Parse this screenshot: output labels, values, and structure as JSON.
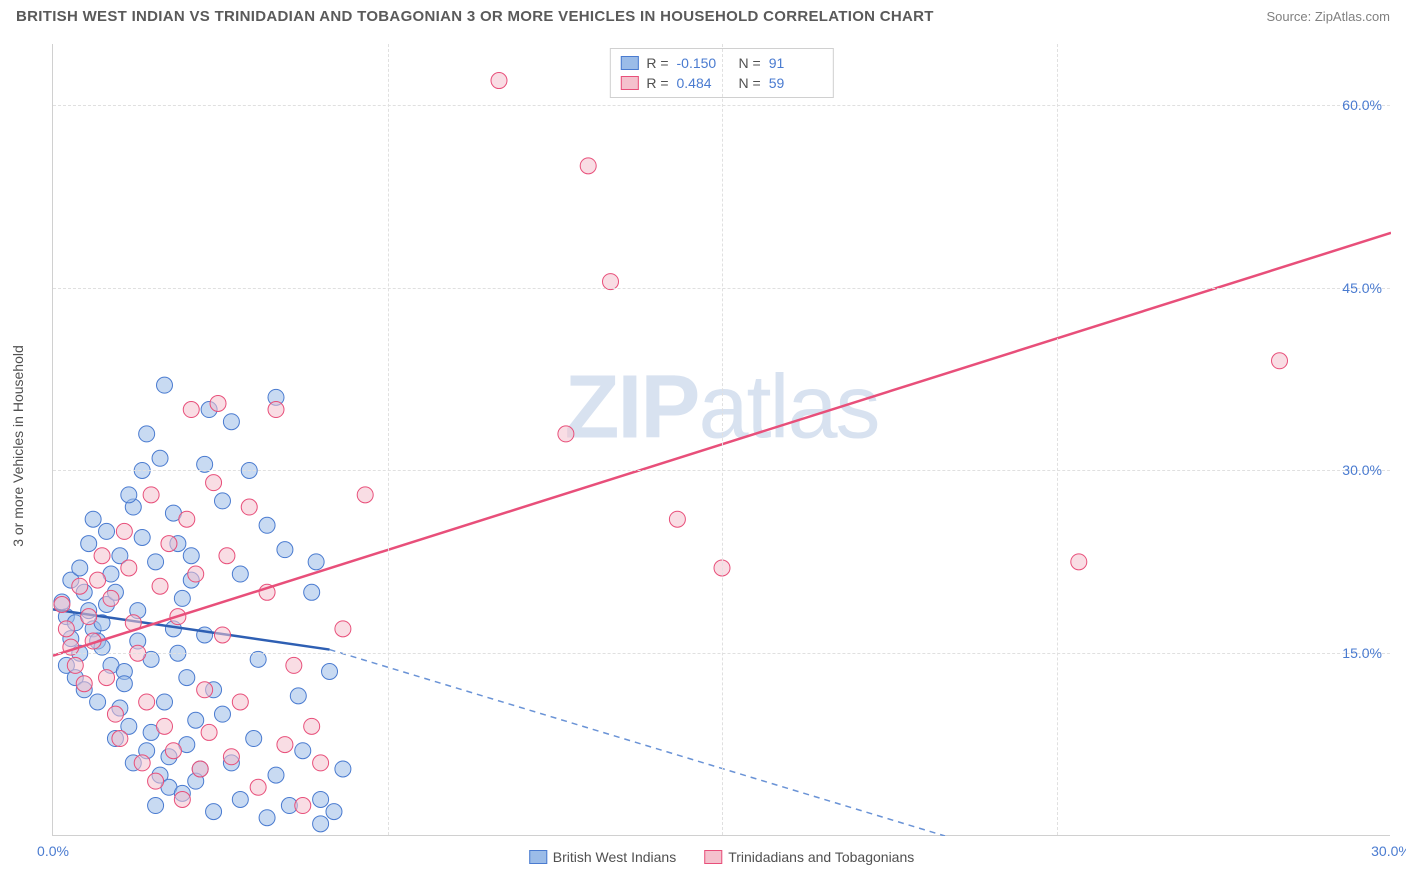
{
  "header": {
    "title": "BRITISH WEST INDIAN VS TRINIDADIAN AND TOBAGONIAN 3 OR MORE VEHICLES IN HOUSEHOLD CORRELATION CHART",
    "source": "Source: ZipAtlas.com"
  },
  "chart": {
    "type": "scatter",
    "watermark": "ZIPatlas",
    "y_axis_title": "3 or more Vehicles in Household",
    "xlim": [
      0,
      30
    ],
    "ylim": [
      0,
      65
    ],
    "x_ticks": [
      0,
      30
    ],
    "x_tick_labels": [
      "0.0%",
      "30.0%"
    ],
    "y_ticks": [
      15,
      30,
      45,
      60
    ],
    "y_tick_labels": [
      "15.0%",
      "30.0%",
      "45.0%",
      "60.0%"
    ],
    "grid_h": [
      15,
      30,
      45,
      60
    ],
    "grid_v": [
      7.5,
      15,
      22.5
    ],
    "grid_color": "#e0e0e0",
    "background_color": "#ffffff",
    "tick_label_color": "#4a7bd0",
    "axis_title_color": "#505050",
    "marker_radius": 8,
    "marker_opacity": 0.55,
    "series": [
      {
        "name": "British West Indians",
        "color_fill": "#9bbce8",
        "color_stroke": "#4a7bd0",
        "R": "-0.150",
        "N": "91",
        "trend": {
          "x1": 0,
          "y1": 18.6,
          "x2_solid": 6.2,
          "y2_solid": 15.3,
          "x2_dash": 20.0,
          "y2_dash": 0.0,
          "solid_color": "#2e5fb3",
          "dash_color": "#6a93d6"
        },
        "points": [
          [
            0.3,
            18.0
          ],
          [
            0.4,
            16.2
          ],
          [
            0.5,
            17.5
          ],
          [
            0.6,
            15.0
          ],
          [
            0.2,
            19.2
          ],
          [
            0.7,
            20.0
          ],
          [
            0.3,
            14.0
          ],
          [
            0.8,
            18.5
          ],
          [
            0.4,
            21.0
          ],
          [
            0.9,
            17.0
          ],
          [
            0.5,
            13.0
          ],
          [
            1.0,
            16.0
          ],
          [
            0.6,
            22.0
          ],
          [
            1.1,
            15.5
          ],
          [
            0.7,
            12.0
          ],
          [
            1.2,
            19.0
          ],
          [
            0.8,
            24.0
          ],
          [
            1.3,
            14.0
          ],
          [
            0.9,
            26.0
          ],
          [
            1.4,
            20.0
          ],
          [
            1.0,
            11.0
          ],
          [
            1.5,
            23.0
          ],
          [
            1.1,
            17.5
          ],
          [
            1.6,
            13.5
          ],
          [
            1.2,
            25.0
          ],
          [
            1.7,
            9.0
          ],
          [
            1.3,
            21.5
          ],
          [
            1.8,
            27.0
          ],
          [
            1.4,
            8.0
          ],
          [
            1.9,
            16.0
          ],
          [
            1.5,
            10.5
          ],
          [
            2.0,
            24.5
          ],
          [
            1.6,
            12.5
          ],
          [
            2.1,
            7.0
          ],
          [
            1.7,
            28.0
          ],
          [
            2.2,
            14.5
          ],
          [
            1.8,
            6.0
          ],
          [
            2.3,
            22.5
          ],
          [
            1.9,
            18.5
          ],
          [
            2.4,
            5.0
          ],
          [
            2.0,
            30.0
          ],
          [
            2.5,
            11.0
          ],
          [
            2.1,
            33.0
          ],
          [
            2.6,
            4.0
          ],
          [
            2.2,
            8.5
          ],
          [
            2.7,
            26.5
          ],
          [
            2.3,
            2.5
          ],
          [
            2.8,
            15.0
          ],
          [
            2.4,
            31.0
          ],
          [
            2.9,
            3.5
          ],
          [
            2.5,
            37.0
          ],
          [
            3.0,
            13.0
          ],
          [
            2.6,
            6.5
          ],
          [
            3.1,
            21.0
          ],
          [
            2.7,
            17.0
          ],
          [
            3.2,
            9.5
          ],
          [
            2.8,
            24.0
          ],
          [
            3.3,
            5.5
          ],
          [
            2.9,
            19.5
          ],
          [
            3.4,
            30.5
          ],
          [
            3.0,
            7.5
          ],
          [
            3.5,
            35.0
          ],
          [
            3.1,
            23.0
          ],
          [
            3.6,
            12.0
          ],
          [
            3.2,
            4.5
          ],
          [
            3.8,
            27.5
          ],
          [
            3.4,
            16.5
          ],
          [
            4.0,
            34.0
          ],
          [
            3.6,
            2.0
          ],
          [
            4.2,
            21.5
          ],
          [
            3.8,
            10.0
          ],
          [
            4.4,
            30.0
          ],
          [
            4.0,
            6.0
          ],
          [
            4.6,
            14.5
          ],
          [
            4.2,
            3.0
          ],
          [
            4.8,
            25.5
          ],
          [
            4.5,
            8.0
          ],
          [
            5.0,
            36.0
          ],
          [
            4.8,
            1.5
          ],
          [
            5.2,
            23.5
          ],
          [
            5.0,
            5.0
          ],
          [
            5.5,
            11.5
          ],
          [
            5.3,
            2.5
          ],
          [
            5.8,
            20.0
          ],
          [
            5.6,
            7.0
          ],
          [
            6.0,
            3.0
          ],
          [
            5.9,
            22.5
          ],
          [
            6.2,
            13.5
          ],
          [
            6.0,
            1.0
          ],
          [
            6.5,
            5.5
          ],
          [
            6.3,
            2.0
          ]
        ]
      },
      {
        "name": "Trinidadians and Tobagonians",
        "color_fill": "#f4c1cd",
        "color_stroke": "#e84f7a",
        "R": "0.484",
        "N": "59",
        "trend": {
          "x1": 0,
          "y1": 14.8,
          "x2_solid": 30.0,
          "y2_solid": 49.5,
          "x2_dash": 30.0,
          "y2_dash": 49.5,
          "solid_color": "#e84f7a",
          "dash_color": "#e84f7a"
        },
        "points": [
          [
            0.2,
            19.0
          ],
          [
            0.4,
            15.5
          ],
          [
            0.3,
            17.0
          ],
          [
            0.6,
            20.5
          ],
          [
            0.5,
            14.0
          ],
          [
            0.8,
            18.0
          ],
          [
            0.7,
            12.5
          ],
          [
            1.0,
            21.0
          ],
          [
            0.9,
            16.0
          ],
          [
            1.2,
            13.0
          ],
          [
            1.1,
            23.0
          ],
          [
            1.4,
            10.0
          ],
          [
            1.3,
            19.5
          ],
          [
            1.6,
            25.0
          ],
          [
            1.5,
            8.0
          ],
          [
            1.8,
            17.5
          ],
          [
            1.7,
            22.0
          ],
          [
            2.0,
            6.0
          ],
          [
            1.9,
            15.0
          ],
          [
            2.2,
            28.0
          ],
          [
            2.1,
            11.0
          ],
          [
            2.4,
            20.5
          ],
          [
            2.3,
            4.5
          ],
          [
            2.6,
            24.0
          ],
          [
            2.5,
            9.0
          ],
          [
            2.8,
            18.0
          ],
          [
            2.7,
            7.0
          ],
          [
            3.0,
            26.0
          ],
          [
            2.9,
            3.0
          ],
          [
            3.2,
            21.5
          ],
          [
            3.1,
            35.0
          ],
          [
            3.4,
            12.0
          ],
          [
            3.3,
            5.5
          ],
          [
            3.6,
            29.0
          ],
          [
            3.5,
            8.5
          ],
          [
            3.8,
            16.5
          ],
          [
            3.7,
            35.5
          ],
          [
            4.0,
            6.5
          ],
          [
            3.9,
            23.0
          ],
          [
            4.2,
            11.0
          ],
          [
            4.4,
            27.0
          ],
          [
            4.6,
            4.0
          ],
          [
            4.8,
            20.0
          ],
          [
            5.0,
            35.0
          ],
          [
            5.2,
            7.5
          ],
          [
            5.4,
            14.0
          ],
          [
            5.6,
            2.5
          ],
          [
            5.8,
            9.0
          ],
          [
            6.0,
            6.0
          ],
          [
            6.5,
            17.0
          ],
          [
            7.0,
            28.0
          ],
          [
            10.0,
            62.0
          ],
          [
            11.5,
            33.0
          ],
          [
            12.0,
            55.0
          ],
          [
            12.5,
            45.5
          ],
          [
            14.0,
            26.0
          ],
          [
            15.0,
            22.0
          ],
          [
            23.0,
            22.5
          ],
          [
            27.5,
            39.0
          ]
        ]
      }
    ]
  },
  "legend_top": {
    "rows": [
      {
        "swatch_fill": "#9bbce8",
        "swatch_stroke": "#4a7bd0",
        "r_label": "R =",
        "r_val": "-0.150",
        "n_label": "N =",
        "n_val": "91"
      },
      {
        "swatch_fill": "#f4c1cd",
        "swatch_stroke": "#e84f7a",
        "r_label": "R =",
        "r_val": "0.484",
        "n_label": "N =",
        "n_val": "59"
      }
    ]
  },
  "legend_bottom": {
    "items": [
      {
        "swatch_fill": "#9bbce8",
        "swatch_stroke": "#4a7bd0",
        "label": "British West Indians"
      },
      {
        "swatch_fill": "#f4c1cd",
        "swatch_stroke": "#e84f7a",
        "label": "Trinidadians and Tobagonians"
      }
    ]
  }
}
